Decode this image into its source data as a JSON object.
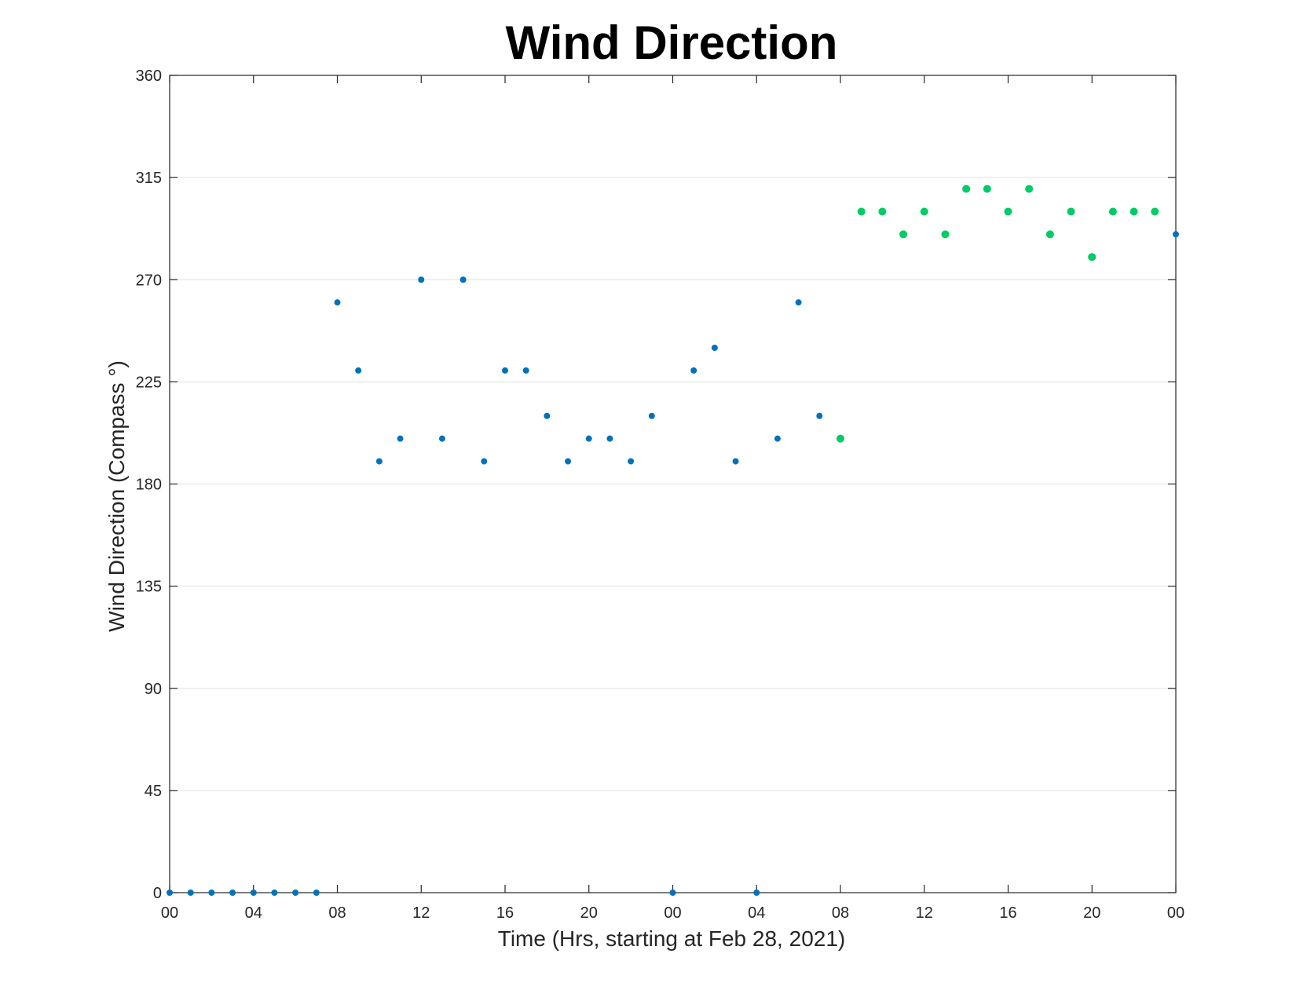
{
  "chart_data": {
    "type": "scatter",
    "title": "Wind Direction",
    "xlabel": "Time (Hrs, starting at Feb 28, 2021)",
    "ylabel": "Wind Direction (Compass °)",
    "xlim": [
      "2021-02-28 00:00",
      "2021-03-02 00:00"
    ],
    "ylim": [
      0,
      360
    ],
    "grid": "horizontal",
    "x_ticks": [
      {
        "x": "2021-02-28 00:00",
        "label": "00"
      },
      {
        "x": "2021-02-28 04:00",
        "label": "04"
      },
      {
        "x": "2021-02-28 08:00",
        "label": "08"
      },
      {
        "x": "2021-02-28 12:00",
        "label": "12"
      },
      {
        "x": "2021-02-28 16:00",
        "label": "16"
      },
      {
        "x": "2021-02-28 20:00",
        "label": "20"
      },
      {
        "x": "2021-03-01 00:00",
        "label": "00"
      },
      {
        "x": "2021-03-01 04:00",
        "label": "04"
      },
      {
        "x": "2021-03-01 08:00",
        "label": "08"
      },
      {
        "x": "2021-03-01 12:00",
        "label": "12"
      },
      {
        "x": "2021-03-01 16:00",
        "label": "16"
      },
      {
        "x": "2021-03-01 20:00",
        "label": "20"
      },
      {
        "x": "2021-03-02 00:00",
        "label": "00"
      }
    ],
    "y_ticks": [
      0,
      45,
      90,
      135,
      180,
      225,
      270,
      315,
      360
    ],
    "series": [
      {
        "color": "#0072BD",
        "points": [
          {
            "x": "2021-02-28 00:00",
            "y": 0
          },
          {
            "x": "2021-02-28 01:00",
            "y": 0
          },
          {
            "x": "2021-02-28 02:00",
            "y": 0
          },
          {
            "x": "2021-02-28 03:00",
            "y": 0
          },
          {
            "x": "2021-02-28 04:00",
            "y": 0
          },
          {
            "x": "2021-02-28 05:00",
            "y": 0
          },
          {
            "x": "2021-02-28 06:00",
            "y": 0
          },
          {
            "x": "2021-02-28 07:00",
            "y": 0
          },
          {
            "x": "2021-02-28 08:00",
            "y": 260
          },
          {
            "x": "2021-02-28 09:00",
            "y": 230
          },
          {
            "x": "2021-02-28 10:00",
            "y": 190
          },
          {
            "x": "2021-02-28 11:00",
            "y": 200
          },
          {
            "x": "2021-02-28 12:00",
            "y": 270
          },
          {
            "x": "2021-02-28 13:00",
            "y": 200
          },
          {
            "x": "2021-02-28 14:00",
            "y": 270
          },
          {
            "x": "2021-02-28 15:00",
            "y": 190
          },
          {
            "x": "2021-02-28 16:00",
            "y": 230
          },
          {
            "x": "2021-02-28 17:00",
            "y": 230
          },
          {
            "x": "2021-02-28 18:00",
            "y": 210
          },
          {
            "x": "2021-02-28 19:00",
            "y": 190
          },
          {
            "x": "2021-02-28 20:00",
            "y": 200
          },
          {
            "x": "2021-02-28 21:00",
            "y": 200
          },
          {
            "x": "2021-02-28 22:00",
            "y": 190
          },
          {
            "x": "2021-02-28 23:00",
            "y": 210
          },
          {
            "x": "2021-03-01 00:00",
            "y": 0
          },
          {
            "x": "2021-03-01 01:00",
            "y": 230
          },
          {
            "x": "2021-03-01 02:00",
            "y": 240
          },
          {
            "x": "2021-03-01 03:00",
            "y": 190
          },
          {
            "x": "2021-03-01 04:00",
            "y": 0
          },
          {
            "x": "2021-03-01 05:00",
            "y": 200
          },
          {
            "x": "2021-03-01 06:00",
            "y": 260
          },
          {
            "x": "2021-03-01 07:00",
            "y": 210
          },
          {
            "x": "2021-03-02 00:00",
            "y": 290
          }
        ]
      },
      {
        "color": "#00CC66",
        "points": [
          {
            "x": "2021-03-01 08:00",
            "y": 200
          },
          {
            "x": "2021-03-01 09:00",
            "y": 300
          },
          {
            "x": "2021-03-01 10:00",
            "y": 300
          },
          {
            "x": "2021-03-01 11:00",
            "y": 290
          },
          {
            "x": "2021-03-01 12:00",
            "y": 300
          },
          {
            "x": "2021-03-01 13:00",
            "y": 290
          },
          {
            "x": "2021-03-01 14:00",
            "y": 310
          },
          {
            "x": "2021-03-01 15:00",
            "y": 310
          },
          {
            "x": "2021-03-01 16:00",
            "y": 300
          },
          {
            "x": "2021-03-01 17:00",
            "y": 310
          },
          {
            "x": "2021-03-01 18:00",
            "y": 290
          },
          {
            "x": "2021-03-01 19:00",
            "y": 300
          },
          {
            "x": "2021-03-01 20:00",
            "y": 280
          },
          {
            "x": "2021-03-01 21:00",
            "y": 300
          },
          {
            "x": "2021-03-01 22:00",
            "y": 300
          },
          {
            "x": "2021-03-01 23:00",
            "y": 300
          }
        ]
      }
    ]
  }
}
